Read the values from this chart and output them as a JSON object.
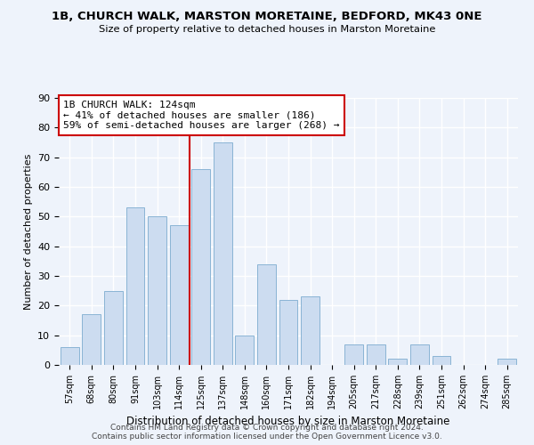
{
  "title1": "1B, CHURCH WALK, MARSTON MORETAINE, BEDFORD, MK43 0NE",
  "title2": "Size of property relative to detached houses in Marston Moretaine",
  "xlabel": "Distribution of detached houses by size in Marston Moretaine",
  "ylabel": "Number of detached properties",
  "categories": [
    "57sqm",
    "68sqm",
    "80sqm",
    "91sqm",
    "103sqm",
    "114sqm",
    "125sqm",
    "137sqm",
    "148sqm",
    "160sqm",
    "171sqm",
    "182sqm",
    "194sqm",
    "205sqm",
    "217sqm",
    "228sqm",
    "239sqm",
    "251sqm",
    "262sqm",
    "274sqm",
    "285sqm"
  ],
  "values": [
    6,
    17,
    25,
    53,
    50,
    47,
    66,
    75,
    10,
    34,
    22,
    23,
    0,
    7,
    7,
    2,
    7,
    3,
    0,
    0,
    2
  ],
  "bar_color": "#ccdcf0",
  "bar_edge_color": "#8ab4d4",
  "vline_index": 6,
  "annotation_title": "1B CHURCH WALK: 124sqm",
  "annotation_line1": "← 41% of detached houses are smaller (186)",
  "annotation_line2": "59% of semi-detached houses are larger (268) →",
  "annotation_box_color": "#ffffff",
  "annotation_box_edge": "#cc0000",
  "vline_color": "#cc0000",
  "ylim": [
    0,
    90
  ],
  "yticks": [
    0,
    10,
    20,
    30,
    40,
    50,
    60,
    70,
    80,
    90
  ],
  "footer1": "Contains HM Land Registry data © Crown copyright and database right 2024.",
  "footer2": "Contains public sector information licensed under the Open Government Licence v3.0.",
  "bg_color": "#eef3fb",
  "grid_color": "#ffffff"
}
